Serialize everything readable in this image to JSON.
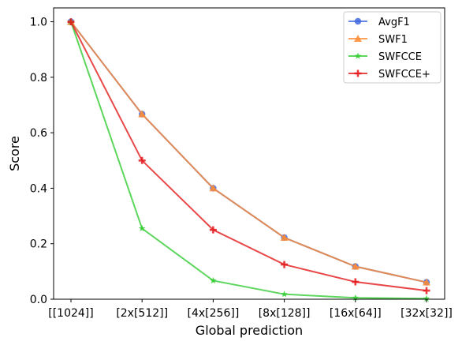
{
  "chart_data": {
    "type": "line",
    "xlabel": "Global prediction",
    "ylabel": "Score",
    "categories": [
      "[[1024]]",
      "[2x[512]]",
      "[4x[256]]",
      "[8x[128]]",
      "[16x[64]]",
      "[32x[32]]"
    ],
    "ylim": [
      0,
      1.05
    ],
    "yticks": [
      0.0,
      0.2,
      0.4,
      0.6,
      0.8,
      1.0
    ],
    "ytick_labels": [
      "0.0",
      "0.2",
      "0.4",
      "0.6",
      "0.8",
      "1.0"
    ],
    "grid": false,
    "legend_position": "top-right",
    "series": [
      {
        "name": "AvgF1",
        "marker": "circle",
        "color": "#4169e1",
        "values": [
          1.0,
          0.667,
          0.4,
          0.222,
          0.118,
          0.061
        ]
      },
      {
        "name": "SWF1",
        "marker": "triangle",
        "color": "#ff8c33",
        "values": [
          1.0,
          0.667,
          0.4,
          0.222,
          0.118,
          0.061
        ]
      },
      {
        "name": "SWFCCE",
        "marker": "star",
        "color": "#33cc33",
        "values": [
          1.0,
          0.255,
          0.067,
          0.018,
          0.005,
          0.002
        ]
      },
      {
        "name": "SWFCCE+",
        "marker": "plus",
        "color": "#e41a1c",
        "values": [
          1.0,
          0.5,
          0.25,
          0.125,
          0.0625,
          0.031
        ]
      }
    ]
  }
}
